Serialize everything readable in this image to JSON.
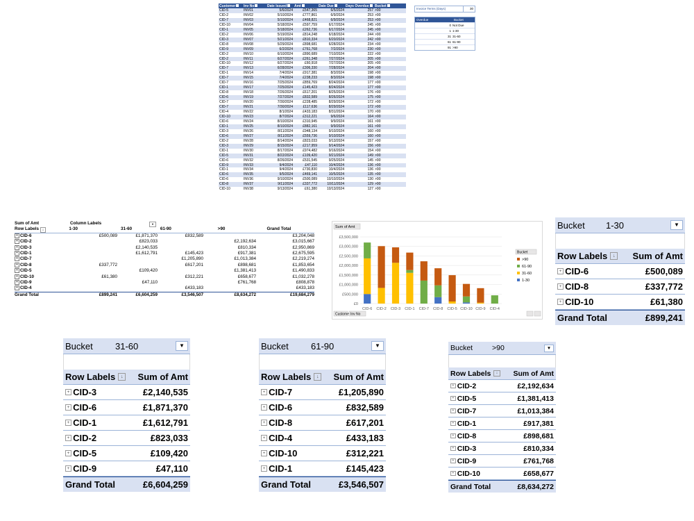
{
  "source_table": {
    "headers": [
      "Customer",
      "Inv No",
      "Date Issued",
      "Amt",
      "Date Due",
      "Days Overdue",
      "Bucket"
    ],
    "rows": [
      [
        "CID-5",
        "INV01",
        "5/6/2024",
        "£547,365",
        "6/5/2024",
        "257",
        ">90"
      ],
      [
        "CID-2",
        "INV02",
        "5/10/2024",
        "£777,861",
        "6/9/2024",
        "253",
        ">90"
      ],
      [
        "CID-7",
        "INV03",
        "5/10/2024",
        "£468,821",
        "6/9/2024",
        "253",
        ">90"
      ],
      [
        "CID-10",
        "INV04",
        "5/18/2024",
        "£597,759",
        "6/17/2024",
        "245",
        ">90"
      ],
      [
        "CID-1",
        "INV05",
        "5/18/2024",
        "£262,736",
        "6/17/2024",
        "245",
        ">90"
      ],
      [
        "CID-2",
        "INV06",
        "5/19/2024",
        "£814,248",
        "6/18/2024",
        "244",
        ">90"
      ],
      [
        "CID-3",
        "INV07",
        "5/21/2024",
        "£810,334",
        "6/20/2024",
        "242",
        ">90"
      ],
      [
        "CID-8",
        "INV08",
        "5/29/2024",
        "£898,681",
        "6/28/2024",
        "234",
        ">90"
      ],
      [
        "CID-9",
        "INV09",
        "6/2/2024",
        "£761,768",
        "7/2/2024",
        "230",
        ">90"
      ],
      [
        "CID-2",
        "INV10",
        "6/10/2024",
        "£890,689",
        "7/10/2024",
        "222",
        ">90"
      ],
      [
        "CID-2",
        "INV11",
        "6/27/2024",
        "£261,348",
        "7/27/2024",
        "205",
        ">90"
      ],
      [
        "CID-10",
        "INV12",
        "6/27/2024",
        "£60,918",
        "7/27/2024",
        "205",
        ">90"
      ],
      [
        "CID-7",
        "INV13",
        "6/28/2024",
        "£306,330",
        "7/28/2024",
        "204",
        ">90"
      ],
      [
        "CID-1",
        "INV14",
        "7/4/2024",
        "£917,381",
        "8/3/2024",
        "198",
        ">90"
      ],
      [
        "CID-7",
        "INV15",
        "7/4/2024",
        "£238,233",
        "8/3/2024",
        "198",
        ">90"
      ],
      [
        "CID-7",
        "INV16",
        "7/25/2024",
        "£859,769",
        "8/24/2024",
        "177",
        ">90"
      ],
      [
        "CID-1",
        "INV17",
        "7/25/2024",
        "£145,423",
        "8/24/2024",
        "177",
        ">90"
      ],
      [
        "CID-8",
        "INV18",
        "7/26/2024",
        "£617,201",
        "8/25/2024",
        "176",
        ">90"
      ],
      [
        "CID-6",
        "INV19",
        "7/27/2024",
        "£832,589",
        "8/26/2024",
        "175",
        ">90"
      ],
      [
        "CID-7",
        "INV20",
        "7/30/2024",
        "£228,485",
        "8/29/2024",
        "172",
        ">90"
      ],
      [
        "CID-7",
        "INV21",
        "7/30/2024",
        "£117,636",
        "8/29/2024",
        "172",
        ">90"
      ],
      [
        "CID-4",
        "INV22",
        "8/1/2024",
        "£433,183",
        "8/31/2024",
        "170",
        ">90"
      ],
      [
        "CID-10",
        "INV23",
        "8/7/2024",
        "£312,221",
        "9/6/2024",
        "164",
        ">90"
      ],
      [
        "CID-6",
        "INV24",
        "8/10/2024",
        "£310,945",
        "9/9/2024",
        "161",
        ">90"
      ],
      [
        "CID-1",
        "INV25",
        "8/10/2024",
        "£882,161",
        "9/9/2024",
        "161",
        ">90"
      ],
      [
        "CID-3",
        "INV26",
        "8/11/2024",
        "£948,134",
        "9/10/2024",
        "160",
        ">90"
      ],
      [
        "CID-6",
        "INV27",
        "8/11/2024",
        "£559,736",
        "9/10/2024",
        "160",
        ">90"
      ],
      [
        "CID-2",
        "INV28",
        "8/14/2024",
        "£823,033",
        "9/13/2024",
        "157",
        ">90"
      ],
      [
        "CID-3",
        "INV29",
        "8/15/2024",
        "£217,959",
        "9/14/2024",
        "156",
        ">90"
      ],
      [
        "CID-1",
        "INV30",
        "8/17/2024",
        "£974,482",
        "9/16/2024",
        "154",
        ">90"
      ],
      [
        "CID-5",
        "INV31",
        "8/22/2024",
        "£109,420",
        "9/21/2024",
        "149",
        ">90"
      ],
      [
        "CID-6",
        "INV32",
        "8/26/2024",
        "£531,545",
        "9/25/2024",
        "145",
        ">90"
      ],
      [
        "CID-9",
        "INV33",
        "9/4/2024",
        "£47,110",
        "10/4/2024",
        "136",
        ">90"
      ],
      [
        "CID-1",
        "INV34",
        "9/4/2024",
        "£730,830",
        "10/4/2024",
        "136",
        ">90"
      ],
      [
        "CID-6",
        "INV35",
        "9/5/2024",
        "£469,141",
        "10/5/2024",
        "135",
        ">90"
      ],
      [
        "CID-6",
        "INV36",
        "9/10/2024",
        "£500,089",
        "10/10/2024",
        "130",
        ">90"
      ],
      [
        "CID-8",
        "INV37",
        "9/11/2024",
        "£337,772",
        "10/11/2024",
        "129",
        ">90"
      ],
      [
        "CID-10",
        "INV38",
        "9/13/2024",
        "£61,380",
        "10/13/2024",
        "127",
        ">90"
      ]
    ]
  },
  "invoice_terms": {
    "label": "Invoice Terms (Days)",
    "value": "30"
  },
  "bucket_lookup": {
    "headers": [
      "Overdue",
      "Bucket"
    ],
    "rows": [
      [
        "0",
        "Not Due"
      ],
      [
        "1",
        "1-30"
      ],
      [
        "31",
        "31-60"
      ],
      [
        "61",
        "61-90"
      ],
      [
        "91",
        ">90"
      ]
    ]
  },
  "main_pivot": {
    "sum_label": "Sum of Amt",
    "col_labels": "Column Labels",
    "row_labels": "Row Labels",
    "columns": [
      "1-30",
      "31-60",
      "61-90",
      ">90",
      "Grand Total"
    ],
    "rows": [
      {
        "label": "CID-6",
        "v": [
          "£500,089",
          "£1,871,370",
          "£832,589",
          "",
          "£3,204,048"
        ]
      },
      {
        "label": "CID-2",
        "v": [
          "",
          "£823,033",
          "",
          "£2,192,634",
          "£3,015,667"
        ]
      },
      {
        "label": "CID-3",
        "v": [
          "",
          "£2,140,535",
          "",
          "£810,334",
          "£2,950,869"
        ]
      },
      {
        "label": "CID-1",
        "v": [
          "",
          "£1,612,791",
          "£145,423",
          "£917,381",
          "£2,675,595"
        ]
      },
      {
        "label": "CID-7",
        "v": [
          "",
          "",
          "£1,205,890",
          "£1,013,384",
          "£2,219,274"
        ]
      },
      {
        "label": "CID-8",
        "v": [
          "£337,772",
          "",
          "£617,201",
          "£898,681",
          "£1,853,654"
        ]
      },
      {
        "label": "CID-5",
        "v": [
          "",
          "£109,420",
          "",
          "£1,381,413",
          "£1,490,833"
        ]
      },
      {
        "label": "CID-10",
        "v": [
          "£61,380",
          "",
          "£312,221",
          "£658,677",
          "£1,032,278"
        ]
      },
      {
        "label": "CID-9",
        "v": [
          "",
          "£47,110",
          "",
          "£761,768",
          "£808,878"
        ]
      },
      {
        "label": "CID-4",
        "v": [
          "",
          "",
          "£433,183",
          "",
          "£433,183"
        ]
      }
    ],
    "total_label": "Grand Total",
    "totals": [
      "£899,241",
      "£6,604,259",
      "£3,546,507",
      "£8,634,272",
      "£19,684,279"
    ]
  },
  "chart_data": {
    "type": "bar",
    "stacked": true,
    "field_button": "Sum of Amt",
    "axis_buttons": [
      "Customer",
      "Inv No"
    ],
    "legend_title": "Bucket",
    "legend_position": "right",
    "categories": [
      "CID-6",
      "CID-2",
      "CID-3",
      "CID-1",
      "CID-7",
      "CID-8",
      "CID-5",
      "CID-10",
      "CID-9",
      "CID-4"
    ],
    "series": [
      {
        "name": "1-30",
        "color": "#4472c4",
        "values": [
          500089,
          0,
          0,
          0,
          0,
          337772,
          0,
          61380,
          0,
          0
        ]
      },
      {
        "name": "31-60",
        "color": "#ffc000",
        "values": [
          1871370,
          823033,
          2140535,
          1612791,
          0,
          0,
          109420,
          0,
          47110,
          0
        ]
      },
      {
        "name": "61-90",
        "color": "#70ad47",
        "values": [
          832589,
          0,
          0,
          145423,
          1205890,
          617201,
          0,
          312221,
          0,
          433183
        ]
      },
      {
        "name": ">90",
        "color": "#c55a11",
        "values": [
          0,
          2192634,
          810334,
          917381,
          1013384,
          898681,
          1381413,
          658677,
          761768,
          0
        ]
      }
    ],
    "ylim": [
      0,
      3500000
    ],
    "yticks": [
      "£0",
      "£500,000",
      "£1,000,000",
      "£1,500,000",
      "£2,000,000",
      "£2,500,000",
      "£3,000,000",
      "£3,500,000"
    ],
    "grid": true
  },
  "small_pivots": [
    {
      "filter_label": "Bucket",
      "filter_value": "1-30",
      "row_labels": "Row Labels",
      "sum_label": "Sum of Amt",
      "rows": [
        [
          "CID-6",
          "£500,089"
        ],
        [
          "CID-8",
          "£337,772"
        ],
        [
          "CID-10",
          "£61,380"
        ]
      ],
      "total_label": "Grand Total",
      "total": "£899,241"
    },
    {
      "filter_label": "Bucket",
      "filter_value": "31-60",
      "row_labels": "Row Labels",
      "sum_label": "Sum of Amt",
      "rows": [
        [
          "CID-3",
          "£2,140,535"
        ],
        [
          "CID-6",
          "£1,871,370"
        ],
        [
          "CID-1",
          "£1,612,791"
        ],
        [
          "CID-2",
          "£823,033"
        ],
        [
          "CID-5",
          "£109,420"
        ],
        [
          "CID-9",
          "£47,110"
        ]
      ],
      "total_label": "Grand Total",
      "total": "£6,604,259"
    },
    {
      "filter_label": "Bucket",
      "filter_value": "61-90",
      "row_labels": "Row Labels",
      "sum_label": "Sum of Amt",
      "rows": [
        [
          "CID-7",
          "£1,205,890"
        ],
        [
          "CID-6",
          "£832,589"
        ],
        [
          "CID-8",
          "£617,201"
        ],
        [
          "CID-4",
          "£433,183"
        ],
        [
          "CID-10",
          "£312,221"
        ],
        [
          "CID-1",
          "£145,423"
        ]
      ],
      "total_label": "Grand Total",
      "total": "£3,546,507"
    },
    {
      "filter_label": "Bucket",
      "filter_value": ">90",
      "row_labels": "Row Labels",
      "sum_label": "Sum of Amt",
      "rows": [
        [
          "CID-2",
          "£2,192,634"
        ],
        [
          "CID-5",
          "£1,381,413"
        ],
        [
          "CID-7",
          "£1,013,384"
        ],
        [
          "CID-1",
          "£917,381"
        ],
        [
          "CID-8",
          "£898,681"
        ],
        [
          "CID-3",
          "£810,334"
        ],
        [
          "CID-9",
          "£761,768"
        ],
        [
          "CID-10",
          "£658,677"
        ]
      ],
      "total_label": "Grand Total",
      "total": "£8,634,272"
    }
  ]
}
